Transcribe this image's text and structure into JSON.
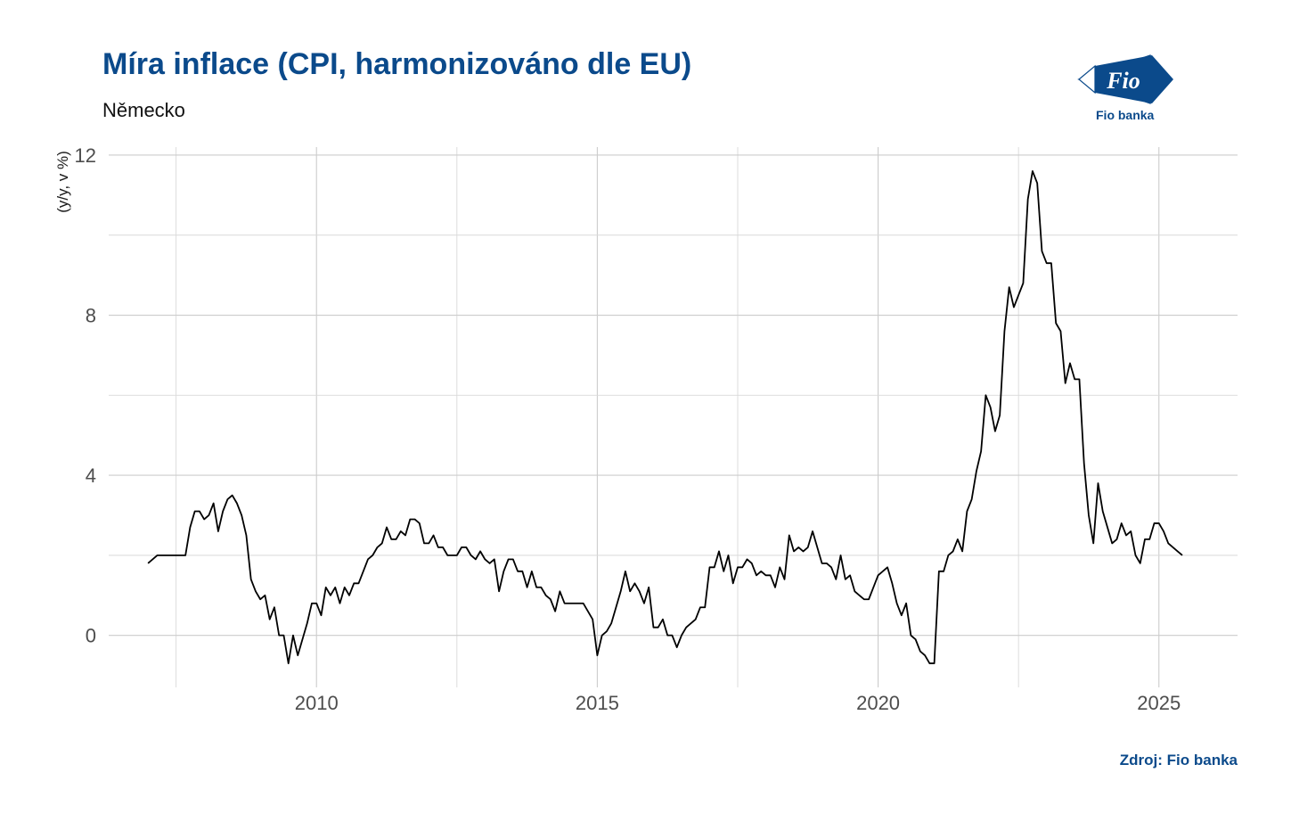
{
  "header": {
    "title": "Míra inflace (CPI, harmonizováno dle EU)",
    "subtitle": "Německo"
  },
  "logo": {
    "mark_text": "Fio",
    "caption": "Fio banka",
    "color": "#0b4a8b"
  },
  "footer": {
    "source": "Zdroj: Fio banka"
  },
  "colors": {
    "accent": "#0b4a8b",
    "line": "#000000",
    "grid": "#cccccc"
  },
  "chart_data": {
    "type": "line",
    "title": "Míra inflace (CPI, harmonizováno dle EU)",
    "subtitle": "Německo",
    "xlabel": "",
    "ylabel": "(y/y, v %)",
    "xlim": [
      2006.3,
      2026.4
    ],
    "ylim": [
      -1.3,
      12.2
    ],
    "x_ticks": [
      2010,
      2015,
      2020,
      2025
    ],
    "y_ticks": [
      0,
      4,
      8,
      12
    ],
    "grid": true,
    "legend": "none",
    "series": [
      {
        "name": "",
        "start": "2007-01",
        "frequency": "monthly",
        "values": [
          1.8,
          1.9,
          2.0,
          2.0,
          2.0,
          2.0,
          2.0,
          2.0,
          2.0,
          2.7,
          3.1,
          3.1,
          2.9,
          3.0,
          3.3,
          2.6,
          3.1,
          3.4,
          3.5,
          3.3,
          3.0,
          2.5,
          1.4,
          1.1,
          0.9,
          1.0,
          0.4,
          0.7,
          0.0,
          0.0,
          -0.7,
          0.0,
          -0.5,
          -0.1,
          0.3,
          0.8,
          0.8,
          0.5,
          1.2,
          1.0,
          1.2,
          0.8,
          1.2,
          1.0,
          1.3,
          1.3,
          1.6,
          1.9,
          2.0,
          2.2,
          2.3,
          2.7,
          2.4,
          2.4,
          2.6,
          2.5,
          2.9,
          2.9,
          2.8,
          2.3,
          2.3,
          2.5,
          2.2,
          2.2,
          2.0,
          2.0,
          2.0,
          2.2,
          2.2,
          2.0,
          1.9,
          2.1,
          1.9,
          1.8,
          1.9,
          1.1,
          1.6,
          1.9,
          1.9,
          1.6,
          1.6,
          1.2,
          1.6,
          1.2,
          1.2,
          1.0,
          0.9,
          0.6,
          1.1,
          0.8,
          0.8,
          0.8,
          0.8,
          0.8,
          0.6,
          0.4,
          -0.5,
          0.0,
          0.1,
          0.3,
          0.7,
          1.1,
          1.6,
          1.1,
          1.3,
          1.1,
          0.8,
          1.2,
          0.2,
          0.2,
          0.4,
          0.0,
          0.0,
          -0.3,
          0.0,
          0.2,
          0.3,
          0.4,
          0.7,
          0.7,
          1.7,
          1.7,
          2.1,
          1.6,
          2.0,
          1.3,
          1.7,
          1.7,
          1.9,
          1.8,
          1.5,
          1.6,
          1.5,
          1.5,
          1.2,
          1.7,
          1.4,
          2.5,
          2.1,
          2.2,
          2.1,
          2.2,
          2.6,
          2.2,
          1.8,
          1.8,
          1.7,
          1.4,
          2.0,
          1.4,
          1.5,
          1.1,
          1.0,
          0.9,
          0.9,
          1.2,
          1.5,
          1.6,
          1.7,
          1.3,
          0.8,
          0.5,
          0.8,
          0.0,
          -0.1,
          -0.4,
          -0.5,
          -0.7,
          -0.7,
          1.6,
          1.6,
          2.0,
          2.1,
          2.4,
          2.1,
          3.1,
          3.4,
          4.1,
          4.6,
          6.0,
          5.7,
          5.1,
          5.5,
          7.6,
          8.7,
          8.2,
          8.5,
          8.8,
          10.9,
          11.6,
          11.3,
          9.6,
          9.3,
          9.3,
          7.8,
          7.6,
          6.3,
          6.8,
          6.4,
          6.4,
          4.3,
          3.0,
          2.3,
          3.8,
          3.1,
          2.7,
          2.3,
          2.4,
          2.8,
          2.5,
          2.6,
          2.0,
          1.8,
          2.4,
          2.4,
          2.8,
          2.8,
          2.6,
          2.3,
          2.2,
          2.1,
          2.0
        ]
      }
    ]
  }
}
